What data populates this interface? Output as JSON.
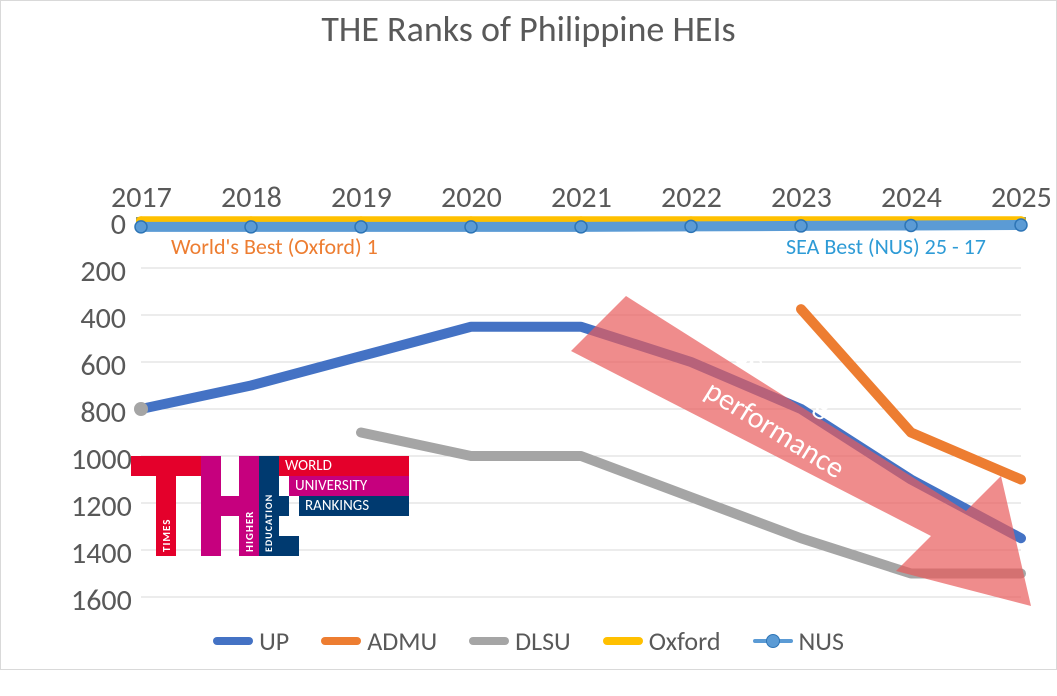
{
  "title": "THE Ranks of Philippine HEIs",
  "title_fontsize": 36,
  "chart": {
    "type": "line",
    "background_color": "#ffffff",
    "grid_color": "#d9d9d9",
    "label_color": "#595959",
    "label_fontsize": 30,
    "line_width": 10,
    "marker_radius": 6,
    "years": [
      2017,
      2018,
      2019,
      2020,
      2021,
      2022,
      2023,
      2024,
      2025
    ],
    "y_ticks": [
      0,
      200,
      400,
      600,
      800,
      1000,
      1200,
      1400,
      1600
    ],
    "ylim": [
      0,
      1600
    ],
    "series": {
      "UP": {
        "label": "UP",
        "color": "#4472c4",
        "values": [
          800,
          700,
          575,
          450,
          450,
          600,
          800,
          1100,
          1350
        ]
      },
      "ADMU": {
        "label": "ADMU",
        "color": "#ed7d31",
        "values": [
          null,
          null,
          null,
          null,
          null,
          null,
          375,
          900,
          1100
        ]
      },
      "DLSU": {
        "label": "DLSU",
        "color": "#a5a5a5",
        "values": [
          null,
          null,
          900,
          1000,
          1000,
          1175,
          1350,
          1500,
          1500
        ]
      },
      "Oxford": {
        "label": "Oxford",
        "color": "#ffc000",
        "values": [
          1,
          1,
          1,
          1,
          1,
          1,
          1,
          1,
          1
        ]
      },
      "NUS": {
        "label": "NUS",
        "color": "#5b9bd5",
        "values": [
          25,
          25,
          25,
          25,
          25,
          23,
          21,
          19,
          17
        ],
        "has_markers": true,
        "marker_outline": "#2e75b6"
      }
    },
    "hband_color": "#8c9c7a",
    "legend_fontsize": 26
  },
  "annotations": {
    "oxford_label": {
      "text": "World's Best (Oxford) 1",
      "color": "#ed7d31",
      "fontsize": 22
    },
    "nus_label": {
      "text": "SEA Best (NUS) 25 - 17",
      "color": "#2e9bd6",
      "fontsize": 22
    },
    "declining": {
      "line1": "Declining",
      "line2": "performance",
      "text_fontsize": 30,
      "arrow_fill": "#e85b5b",
      "arrow_opacity": 0.7
    }
  },
  "the_logo": {
    "red": "#e4002b",
    "magenta": "#c6007e",
    "blue": "#003a70",
    "white": "#ffffff",
    "times": "TIMES",
    "higher": "HIGHER",
    "education": "EDUCATION",
    "world": "WORLD",
    "university": "UNIVERSITY",
    "rankings": "RANKINGS"
  }
}
